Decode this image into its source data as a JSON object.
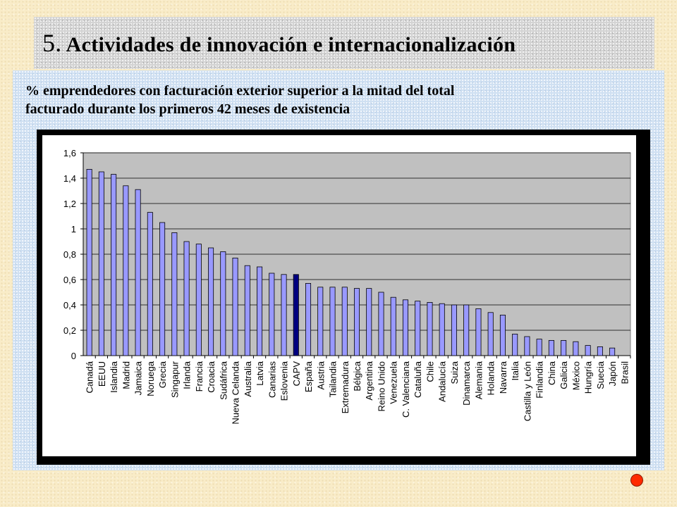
{
  "slide": {
    "title_number": "5.",
    "title": "Actividades de innovación e internacionalización",
    "subtitle_line1": "% emprendedores con facturación exterior superior a la mitad del total",
    "subtitle_line2": "facturado durante los primeros 42 meses de existencia"
  },
  "chart_data": {
    "type": "bar",
    "title": "",
    "xlabel": "",
    "ylabel": "",
    "ylim": [
      0,
      1.6
    ],
    "yticks": [
      "0",
      "0,2",
      "0,4",
      "0,6",
      "0,8",
      "1",
      "1,2",
      "1,4",
      "1,6"
    ],
    "grid": true,
    "legend": "none",
    "bar_color": "#9999ff",
    "highlight_color": "#000080",
    "plot_background": "#c0c0c0",
    "highlight": "CAPV",
    "categories": [
      "Canadá",
      "EEUU",
      "Islandia",
      "Madrid",
      "Jamaica",
      "Noruega",
      "Grecia",
      "Singapur",
      "Irlanda",
      "Francia",
      "Croacia",
      "Sudáfrica",
      "Nueva Celanda",
      "Australia",
      "Latvia",
      "Canarias",
      "Eslovenia",
      "CAPV",
      "España",
      "Austria",
      "Tailandia",
      "Extremadura",
      "Bélgica",
      "Argentina",
      "Reino Unido",
      "Venezuela",
      "C. Valenciana",
      "Cataluña",
      "Chile",
      "Andalucía",
      "Suiza",
      "Dinamarca",
      "Alemania",
      "Holanda",
      "Navarra",
      "Italia",
      "Castilla y León",
      "Finlandia",
      "China",
      "Galicia",
      "México",
      "Hungría",
      "Suecia",
      "Japón",
      "Brasil"
    ],
    "values": [
      1.47,
      1.45,
      1.43,
      1.34,
      1.31,
      1.13,
      1.05,
      0.97,
      0.9,
      0.88,
      0.85,
      0.82,
      0.77,
      0.71,
      0.7,
      0.65,
      0.64,
      0.64,
      0.57,
      0.54,
      0.54,
      0.54,
      0.53,
      0.53,
      0.5,
      0.46,
      0.44,
      0.43,
      0.42,
      0.41,
      0.4,
      0.4,
      0.37,
      0.34,
      0.32,
      0.17,
      0.15,
      0.13,
      0.12,
      0.12,
      0.11,
      0.08,
      0.07,
      0.06,
      0.0
    ]
  }
}
